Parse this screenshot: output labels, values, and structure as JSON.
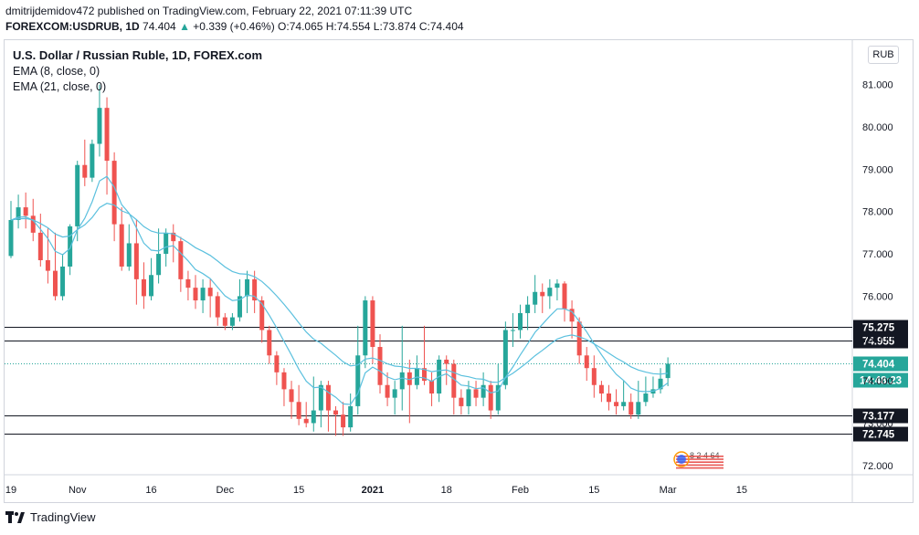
{
  "header": {
    "line1": "dmitrijdemidov472 published on TradingView.com, February 22, 2021 07:11:39 UTC",
    "symbol": "FOREXCOM:USDRUB, 1D",
    "last": "74.404",
    "change": "+0.339 (+0.46%)",
    "ohlc": "O:74.065 H:74.554 L:73.874 C:74.404"
  },
  "legend": {
    "title": "U.S. Dollar / Russian Ruble, 1D, FOREX.com",
    "ema8": "EMA (8, close, 0)",
    "ema21": "EMA (21, close, 0)"
  },
  "currency_badge": "RUB",
  "countdown": "14:48:23",
  "footer": {
    "brand": "TradingView"
  },
  "watermark_text": "8 2 4 64",
  "colors": {
    "up": "#26a69a",
    "down": "#ef5350",
    "ema": "#5bc0de",
    "line": "#131722"
  },
  "chart_data": {
    "type": "candlestick",
    "yaxis": {
      "range": [
        71.78,
        82.05
      ],
      "ticks": [
        "72.000",
        "73.000",
        "74.000",
        "75.000",
        "76.000",
        "77.000",
        "78.000",
        "79.000",
        "80.000",
        "81.000"
      ]
    },
    "xaxis": {
      "ticks": [
        {
          "i": 0,
          "label": "19"
        },
        {
          "i": 9,
          "label": "Nov"
        },
        {
          "i": 19,
          "label": "16"
        },
        {
          "i": 29,
          "label": "Dec"
        },
        {
          "i": 39,
          "label": "15"
        },
        {
          "i": 49,
          "label": "2021"
        },
        {
          "i": 59,
          "label": "18"
        },
        {
          "i": 69,
          "label": "Feb"
        },
        {
          "i": 79,
          "label": "15"
        },
        {
          "i": 89,
          "label": "Mar"
        },
        {
          "i": 99,
          "label": "15"
        }
      ]
    },
    "levels": [
      {
        "value": 75.275,
        "label": "75.275"
      },
      {
        "value": 74.955,
        "label": "74.955"
      },
      {
        "value": 73.177,
        "label": "73.177"
      },
      {
        "value": 72.745,
        "label": "72.745"
      }
    ],
    "last_price": {
      "value": 74.404,
      "label": "74.404"
    },
    "candles": [
      [
        76.95,
        77.8,
        78.25,
        76.9
      ],
      [
        77.8,
        78.1,
        78.4,
        77.6
      ],
      [
        78.1,
        77.9,
        78.45,
        77.6
      ],
      [
        77.9,
        77.5,
        78.3,
        77.3
      ],
      [
        77.5,
        76.85,
        77.95,
        76.7
      ],
      [
        76.85,
        76.6,
        77.6,
        76.3
      ],
      [
        76.6,
        76.0,
        77.5,
        75.9
      ],
      [
        76.0,
        76.7,
        77.0,
        75.9
      ],
      [
        76.7,
        77.65,
        77.7,
        76.5
      ],
      [
        77.65,
        79.1,
        79.2,
        77.3
      ],
      [
        79.1,
        78.8,
        79.7,
        78.6
      ],
      [
        78.8,
        79.6,
        79.7,
        78.7
      ],
      [
        79.6,
        80.45,
        81.0,
        79.3
      ],
      [
        80.45,
        79.2,
        80.7,
        78.4
      ],
      [
        79.2,
        77.7,
        79.4,
        77.3
      ],
      [
        77.7,
        76.7,
        78.1,
        76.6
      ],
      [
        76.7,
        77.25,
        77.7,
        76.6
      ],
      [
        77.25,
        76.4,
        77.8,
        75.8
      ],
      [
        76.4,
        76.0,
        76.8,
        75.7
      ],
      [
        76.0,
        76.5,
        76.9,
        75.9
      ],
      [
        76.5,
        77.0,
        77.6,
        76.3
      ],
      [
        77.0,
        77.5,
        77.6,
        76.7
      ],
      [
        77.5,
        77.3,
        77.7,
        76.8
      ],
      [
        77.3,
        76.4,
        77.4,
        76.1
      ],
      [
        76.4,
        76.2,
        76.6,
        75.9
      ],
      [
        76.2,
        75.9,
        76.5,
        75.7
      ],
      [
        75.9,
        76.2,
        76.4,
        75.6
      ],
      [
        76.2,
        76.0,
        76.4,
        75.5
      ],
      [
        76.0,
        75.5,
        76.1,
        75.3
      ],
      [
        75.5,
        75.3,
        75.6,
        75.2
      ],
      [
        75.3,
        75.5,
        75.6,
        75.2
      ],
      [
        75.5,
        76.0,
        76.4,
        75.4
      ],
      [
        76.0,
        76.4,
        76.6,
        75.6
      ],
      [
        76.4,
        75.9,
        76.6,
        75.6
      ],
      [
        75.9,
        75.2,
        76.0,
        74.9
      ],
      [
        75.2,
        74.6,
        75.3,
        74.4
      ],
      [
        74.6,
        74.2,
        74.7,
        73.9
      ],
      [
        74.2,
        73.8,
        74.3,
        73.4
      ],
      [
        73.8,
        73.5,
        74.0,
        73.1
      ],
      [
        73.5,
        73.1,
        73.9,
        72.95
      ],
      [
        73.1,
        73.0,
        73.5,
        72.9
      ],
      [
        73.0,
        73.3,
        74.1,
        72.8
      ],
      [
        73.3,
        73.9,
        74.0,
        72.9
      ],
      [
        73.9,
        73.3,
        74.0,
        72.8
      ],
      [
        73.3,
        73.2,
        73.4,
        72.7
      ],
      [
        73.2,
        72.9,
        73.5,
        72.7
      ],
      [
        72.9,
        73.4,
        73.7,
        72.8
      ],
      [
        73.4,
        74.6,
        75.3,
        73.2
      ],
      [
        74.6,
        75.9,
        76.0,
        74.3
      ],
      [
        75.9,
        74.8,
        76.0,
        74.4
      ],
      [
        74.8,
        73.9,
        75.1,
        73.7
      ],
      [
        73.9,
        73.6,
        74.2,
        73.4
      ],
      [
        73.6,
        73.8,
        74.0,
        73.2
      ],
      [
        73.8,
        74.2,
        75.3,
        73.3
      ],
      [
        74.2,
        73.9,
        74.5,
        73.0
      ],
      [
        73.9,
        74.3,
        74.6,
        73.8
      ],
      [
        74.3,
        74.0,
        75.3,
        73.9
      ],
      [
        74.0,
        73.7,
        74.2,
        73.4
      ],
      [
        73.7,
        74.5,
        74.6,
        73.5
      ],
      [
        74.5,
        74.4,
        74.6,
        73.9
      ],
      [
        74.4,
        73.6,
        74.5,
        73.2
      ],
      [
        73.6,
        73.4,
        73.8,
        73.2
      ],
      [
        73.4,
        73.8,
        74.0,
        73.2
      ],
      [
        73.8,
        73.6,
        74.0,
        73.4
      ],
      [
        73.6,
        73.9,
        74.2,
        73.4
      ],
      [
        73.9,
        73.3,
        74.0,
        73.1
      ],
      [
        73.3,
        73.9,
        74.4,
        73.2
      ],
      [
        73.9,
        75.2,
        75.4,
        73.8
      ],
      [
        75.2,
        75.2,
        75.6,
        74.8
      ],
      [
        75.2,
        75.6,
        75.8,
        75.0
      ],
      [
        75.6,
        75.8,
        76.0,
        75.2
      ],
      [
        75.8,
        76.1,
        76.5,
        75.6
      ],
      [
        76.1,
        76.0,
        76.3,
        75.6
      ],
      [
        76.0,
        76.2,
        76.4,
        75.7
      ],
      [
        76.2,
        76.3,
        76.4,
        75.9
      ],
      [
        76.3,
        75.7,
        76.35,
        75.4
      ],
      [
        75.7,
        75.4,
        75.9,
        75.0
      ],
      [
        75.4,
        74.6,
        75.5,
        74.4
      ],
      [
        74.6,
        74.3,
        74.8,
        74.0
      ],
      [
        74.3,
        73.9,
        74.6,
        73.6
      ],
      [
        73.9,
        73.7,
        74.0,
        73.5
      ],
      [
        73.7,
        73.5,
        73.9,
        73.3
      ],
      [
        73.5,
        73.4,
        73.8,
        73.2
      ],
      [
        73.4,
        73.5,
        74.0,
        73.3
      ],
      [
        73.5,
        73.2,
        73.7,
        73.1
      ],
      [
        73.2,
        73.5,
        74.0,
        73.1
      ],
      [
        73.5,
        73.7,
        74.1,
        73.4
      ],
      [
        73.7,
        73.8,
        74.1,
        73.6
      ],
      [
        73.8,
        74.05,
        74.3,
        73.7
      ],
      [
        74.065,
        74.404,
        74.554,
        73.874
      ]
    ]
  }
}
